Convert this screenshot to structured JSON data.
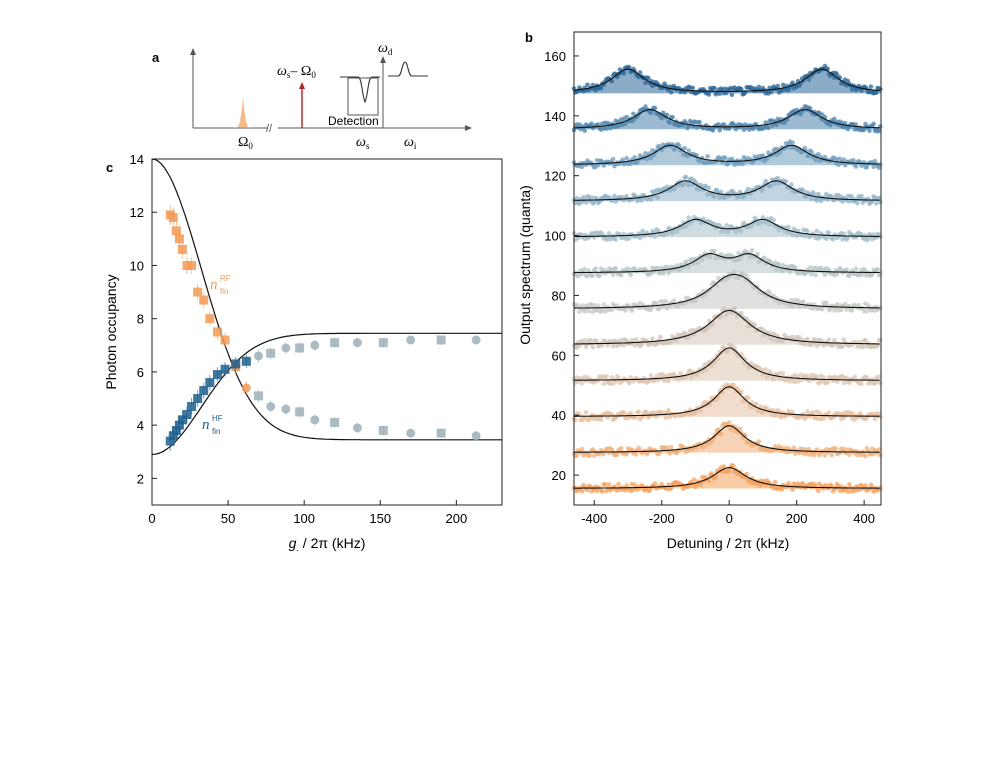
{
  "panel_labels": {
    "a": "a",
    "b": "b",
    "c": "c"
  },
  "schematic": {
    "omega0_label": "Ω",
    "omega0_sub": "0",
    "pump_label_w": "ω",
    "pump_label_s": "s",
    "pump_label_minus": "– Ω",
    "pump_label_0": "0",
    "detection_label": "Detection",
    "omega_d": "ω",
    "omega_d_sub": "d",
    "omega_s": "ω",
    "omega_s_sub": "s",
    "omega_i": "ω",
    "omega_i_sub": "i",
    "axis_break": "//"
  },
  "colors": {
    "orange": "#f39a55",
    "blue": "#1e5f8e",
    "grey": "#9fb0b8",
    "fit": "#111111"
  },
  "chart_data": [
    {
      "id": "c",
      "type": "scatter",
      "xlabel_italic": "g",
      "xlabel_sub": ".",
      "xlabel_rest": " / 2π (kHz)",
      "ylabel": "Photon occupancy",
      "xlim": [
        0,
        230
      ],
      "ylim": [
        1,
        14
      ],
      "xticks": [
        0,
        50,
        100,
        150,
        200
      ],
      "yticks": [
        2,
        4,
        6,
        8,
        10,
        12,
        14
      ],
      "series": [
        {
          "name": "RF",
          "label_n": "n",
          "label_sub": "fin",
          "label_sup": "RF",
          "color": "#f39a55",
          "x": [
            12,
            14,
            16,
            18,
            20,
            23,
            26,
            30,
            34,
            38,
            43,
            48,
            55,
            62,
            70,
            78,
            88,
            97,
            107,
            120,
            135,
            152,
            170,
            190,
            213
          ],
          "y": [
            11.9,
            11.8,
            11.3,
            11.0,
            10.6,
            10.0,
            10.0,
            9.0,
            8.7,
            8.0,
            7.5,
            7.2,
            6.2,
            5.4,
            5.1,
            4.7,
            4.6,
            4.5,
            4.2,
            4.1,
            3.9,
            3.8,
            3.7,
            3.7,
            3.6
          ],
          "marker": [
            "s",
            "s",
            "s",
            "s",
            "s",
            "s",
            "s",
            "s",
            "s",
            "s",
            "s",
            "s",
            "s",
            "o",
            "s",
            "o",
            "o",
            "s",
            "o",
            "s",
            "o",
            "s",
            "o",
            "s",
            "o"
          ]
        },
        {
          "name": "HF",
          "label_n": "n",
          "label_sub": "fin",
          "label_sup": "HF",
          "color": "#1e5f8e",
          "x": [
            12,
            14,
            16,
            18,
            20,
            23,
            26,
            30,
            34,
            38,
            43,
            48,
            55,
            62,
            70,
            78,
            88,
            97,
            107,
            120,
            135,
            152,
            170,
            190,
            213
          ],
          "y": [
            3.4,
            3.6,
            3.8,
            4.0,
            4.2,
            4.4,
            4.7,
            5.0,
            5.3,
            5.6,
            5.9,
            6.1,
            6.3,
            6.4,
            6.6,
            6.7,
            6.9,
            6.9,
            7.0,
            7.1,
            7.1,
            7.1,
            7.2,
            7.2,
            7.2
          ],
          "marker": [
            "s",
            "s",
            "s",
            "s",
            "s",
            "s",
            "s",
            "s",
            "s",
            "s",
            "s",
            "s",
            "s",
            "s",
            "o",
            "s",
            "o",
            "s",
            "o",
            "s",
            "o",
            "s",
            "o",
            "s",
            "o"
          ]
        }
      ],
      "fit": {
        "start": 14.0,
        "end": 2.9,
        "saturation": 7.45,
        "width": 46
      }
    },
    {
      "id": "b",
      "type": "area",
      "xlabel": "Detuning / 2π (kHz)",
      "ylabel": "Output spectrum (quanta)",
      "xlim": [
        -460,
        450
      ],
      "ylim": [
        10,
        168
      ],
      "xticks": [
        -400,
        -200,
        0,
        200,
        400
      ],
      "yticks": [
        20,
        40,
        60,
        80,
        100,
        120,
        140,
        160
      ],
      "series": [
        {
          "baseline": 15.5,
          "peak1": 0,
          "peak2": 0,
          "height": 7,
          "width": 60,
          "color": "#f5a25d"
        },
        {
          "baseline": 27.5,
          "peak1": 0,
          "peak2": 0,
          "height": 9,
          "width": 55,
          "color": "#f0b07b"
        },
        {
          "baseline": 39.5,
          "peak1": 0,
          "peak2": 0,
          "height": 10,
          "width": 55,
          "color": "#e8c0a0"
        },
        {
          "baseline": 51.5,
          "peak1": 0,
          "peak2": 0,
          "height": 11,
          "width": 58,
          "color": "#ddc5b1"
        },
        {
          "baseline": 63.5,
          "peak1": 0,
          "peak2": 0,
          "height": 11.5,
          "width": 75,
          "color": "#d2c6ba"
        },
        {
          "baseline": 75.5,
          "peak1": -10,
          "peak2": 40,
          "height": 6.5,
          "width": 70,
          "color": "#c6c9c4"
        },
        {
          "baseline": 87.5,
          "peak1": -60,
          "peak2": 60,
          "height": 5.5,
          "width": 55,
          "color": "#b7c5c7"
        },
        {
          "baseline": 99.5,
          "peak1": -100,
          "peak2": 100,
          "height": 5.5,
          "width": 58,
          "color": "#a6bfcb"
        },
        {
          "baseline": 111.5,
          "peak1": -130,
          "peak2": 140,
          "height": 6.5,
          "width": 60,
          "color": "#8fb1c8"
        },
        {
          "baseline": 123.5,
          "peak1": -175,
          "peak2": 185,
          "height": 6.5,
          "width": 60,
          "color": "#6e9cbe"
        },
        {
          "baseline": 135.5,
          "peak1": -235,
          "peak2": 225,
          "height": 6.5,
          "width": 60,
          "color": "#4b83ae"
        },
        {
          "baseline": 147.5,
          "peak1": -300,
          "peak2": 275,
          "height": 8,
          "width": 60,
          "color": "#2a6798"
        }
      ]
    }
  ]
}
